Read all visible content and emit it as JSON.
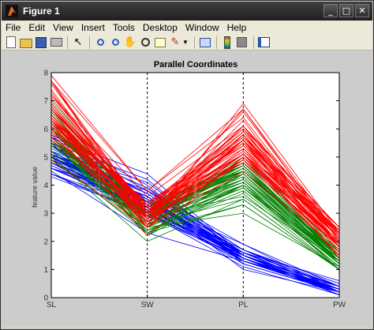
{
  "window": {
    "title": "Figure 1",
    "controls": [
      "_",
      "□",
      "✕"
    ]
  },
  "menu": [
    "File",
    "Edit",
    "View",
    "Insert",
    "Tools",
    "Desktop",
    "Window",
    "Help"
  ],
  "toolbar": {
    "icons": [
      "new-figure-icon",
      "open-file-icon",
      "save-icon",
      "print-icon",
      "edit-plot-arrow-icon",
      "zoom-in-icon",
      "zoom-out-icon",
      "pan-icon",
      "rotate-3d-icon",
      "data-cursor-icon",
      "brush-icon",
      "link-plot-icon",
      "colorbar-icon",
      "legend-icon",
      "plot-tools-icon"
    ]
  },
  "chart_data": {
    "type": "line",
    "title": "Parallel Coordinates",
    "ylabel": "feature value",
    "categories": [
      "SL",
      "SW",
      "PL",
      "PW"
    ],
    "ylim": [
      0,
      8
    ],
    "yticks": [
      0,
      1,
      2,
      3,
      4,
      5,
      6,
      7,
      8
    ],
    "grid": false,
    "vertical_dashed_lines_at": [
      "SW",
      "PL"
    ],
    "series": [
      {
        "color": "#0000ff",
        "lines": [
          [
            5.1,
            3.5,
            1.4,
            0.2
          ],
          [
            4.9,
            3.0,
            1.4,
            0.2
          ],
          [
            4.7,
            3.2,
            1.3,
            0.2
          ],
          [
            4.6,
            3.1,
            1.5,
            0.2
          ],
          [
            5.0,
            3.6,
            1.4,
            0.2
          ],
          [
            5.4,
            3.9,
            1.7,
            0.4
          ],
          [
            4.6,
            3.4,
            1.4,
            0.3
          ],
          [
            5.0,
            3.4,
            1.5,
            0.2
          ],
          [
            4.4,
            2.9,
            1.4,
            0.2
          ],
          [
            4.9,
            3.1,
            1.5,
            0.1
          ],
          [
            5.4,
            3.7,
            1.5,
            0.2
          ],
          [
            4.8,
            3.4,
            1.6,
            0.2
          ],
          [
            4.8,
            3.0,
            1.4,
            0.1
          ],
          [
            4.3,
            3.0,
            1.1,
            0.1
          ],
          [
            5.8,
            4.0,
            1.2,
            0.2
          ],
          [
            5.7,
            4.4,
            1.5,
            0.4
          ],
          [
            5.4,
            3.9,
            1.3,
            0.4
          ],
          [
            5.1,
            3.5,
            1.4,
            0.3
          ],
          [
            5.7,
            3.8,
            1.7,
            0.3
          ],
          [
            5.1,
            3.8,
            1.5,
            0.3
          ],
          [
            5.4,
            3.4,
            1.7,
            0.2
          ],
          [
            5.1,
            3.7,
            1.5,
            0.4
          ],
          [
            4.6,
            3.6,
            1.0,
            0.2
          ],
          [
            5.1,
            3.3,
            1.7,
            0.5
          ],
          [
            4.8,
            3.4,
            1.9,
            0.2
          ],
          [
            5.0,
            3.0,
            1.6,
            0.2
          ],
          [
            5.0,
            3.4,
            1.6,
            0.4
          ],
          [
            5.2,
            3.5,
            1.5,
            0.2
          ],
          [
            5.2,
            3.4,
            1.4,
            0.2
          ],
          [
            4.7,
            3.2,
            1.6,
            0.2
          ],
          [
            4.8,
            3.1,
            1.6,
            0.2
          ],
          [
            5.4,
            3.4,
            1.5,
            0.4
          ],
          [
            5.2,
            4.1,
            1.5,
            0.1
          ],
          [
            5.5,
            4.2,
            1.4,
            0.2
          ],
          [
            4.9,
            3.1,
            1.5,
            0.2
          ],
          [
            5.0,
            3.2,
            1.2,
            0.2
          ],
          [
            5.5,
            3.5,
            1.3,
            0.2
          ],
          [
            4.9,
            3.6,
            1.4,
            0.1
          ],
          [
            4.4,
            3.0,
            1.3,
            0.2
          ],
          [
            5.1,
            3.4,
            1.5,
            0.2
          ],
          [
            5.0,
            3.5,
            1.3,
            0.3
          ],
          [
            4.5,
            2.3,
            1.3,
            0.3
          ],
          [
            4.4,
            3.2,
            1.3,
            0.2
          ],
          [
            5.0,
            3.5,
            1.6,
            0.6
          ],
          [
            5.1,
            3.8,
            1.9,
            0.4
          ],
          [
            4.8,
            3.0,
            1.4,
            0.3
          ],
          [
            5.1,
            3.8,
            1.6,
            0.2
          ],
          [
            4.6,
            3.2,
            1.4,
            0.2
          ],
          [
            5.3,
            3.7,
            1.5,
            0.2
          ],
          [
            5.0,
            3.3,
            1.4,
            0.2
          ]
        ]
      },
      {
        "color": "#008000",
        "lines": [
          [
            7.0,
            3.2,
            4.7,
            1.4
          ],
          [
            6.4,
            3.2,
            4.5,
            1.5
          ],
          [
            6.9,
            3.1,
            4.9,
            1.5
          ],
          [
            5.5,
            2.3,
            4.0,
            1.3
          ],
          [
            6.5,
            2.8,
            4.6,
            1.5
          ],
          [
            5.7,
            2.8,
            4.5,
            1.3
          ],
          [
            6.3,
            3.3,
            4.7,
            1.6
          ],
          [
            4.9,
            2.4,
            3.3,
            1.0
          ],
          [
            6.6,
            2.9,
            4.6,
            1.3
          ],
          [
            5.2,
            2.7,
            3.9,
            1.4
          ],
          [
            5.0,
            2.0,
            3.5,
            1.0
          ],
          [
            5.9,
            3.0,
            4.2,
            1.5
          ],
          [
            6.0,
            2.2,
            4.0,
            1.0
          ],
          [
            6.1,
            2.9,
            4.7,
            1.4
          ],
          [
            5.6,
            2.9,
            3.6,
            1.3
          ],
          [
            6.7,
            3.1,
            4.4,
            1.4
          ],
          [
            5.6,
            3.0,
            4.5,
            1.5
          ],
          [
            5.8,
            2.7,
            4.1,
            1.0
          ],
          [
            6.2,
            2.2,
            4.5,
            1.5
          ],
          [
            5.6,
            2.5,
            3.9,
            1.1
          ],
          [
            5.9,
            3.2,
            4.8,
            1.8
          ],
          [
            6.1,
            2.8,
            4.0,
            1.3
          ],
          [
            6.3,
            2.5,
            4.9,
            1.5
          ],
          [
            6.1,
            2.8,
            4.7,
            1.2
          ],
          [
            6.4,
            2.9,
            4.3,
            1.3
          ],
          [
            6.6,
            3.0,
            4.4,
            1.4
          ],
          [
            6.8,
            2.8,
            4.8,
            1.4
          ],
          [
            6.7,
            3.0,
            5.0,
            1.7
          ],
          [
            6.0,
            2.9,
            4.5,
            1.5
          ],
          [
            5.7,
            2.6,
            3.5,
            1.0
          ],
          [
            5.5,
            2.4,
            3.8,
            1.1
          ],
          [
            5.5,
            2.4,
            3.7,
            1.0
          ],
          [
            5.8,
            2.7,
            3.9,
            1.2
          ],
          [
            6.0,
            2.7,
            5.1,
            1.6
          ],
          [
            5.4,
            3.0,
            4.5,
            1.5
          ],
          [
            6.0,
            3.4,
            4.5,
            1.6
          ],
          [
            6.7,
            3.1,
            4.7,
            1.5
          ],
          [
            6.3,
            2.3,
            4.4,
            1.3
          ],
          [
            5.6,
            3.0,
            4.1,
            1.3
          ],
          [
            5.5,
            2.5,
            4.0,
            1.3
          ],
          [
            5.5,
            2.6,
            4.4,
            1.2
          ],
          [
            6.1,
            3.0,
            4.6,
            1.4
          ],
          [
            5.8,
            2.6,
            4.0,
            1.2
          ],
          [
            5.0,
            2.3,
            3.3,
            1.0
          ],
          [
            5.6,
            2.7,
            4.2,
            1.3
          ],
          [
            5.7,
            3.0,
            4.2,
            1.2
          ],
          [
            5.7,
            2.9,
            4.2,
            1.3
          ],
          [
            6.2,
            2.9,
            4.3,
            1.3
          ],
          [
            5.1,
            2.5,
            3.0,
            1.1
          ],
          [
            5.7,
            2.8,
            4.1,
            1.3
          ]
        ]
      },
      {
        "color": "#ff0000",
        "lines": [
          [
            6.3,
            3.3,
            6.0,
            2.5
          ],
          [
            5.8,
            2.7,
            5.1,
            1.9
          ],
          [
            7.1,
            3.0,
            5.9,
            2.1
          ],
          [
            6.3,
            2.9,
            5.6,
            1.8
          ],
          [
            6.5,
            3.0,
            5.8,
            2.2
          ],
          [
            7.6,
            3.0,
            6.6,
            2.1
          ],
          [
            4.9,
            2.5,
            4.5,
            1.7
          ],
          [
            7.3,
            2.9,
            6.3,
            1.8
          ],
          [
            6.7,
            2.5,
            5.8,
            1.8
          ],
          [
            7.2,
            3.6,
            6.1,
            2.5
          ],
          [
            6.5,
            3.2,
            5.1,
            2.0
          ],
          [
            6.4,
            2.7,
            5.3,
            1.9
          ],
          [
            6.8,
            3.0,
            5.5,
            2.1
          ],
          [
            5.7,
            2.5,
            5.0,
            2.0
          ],
          [
            5.8,
            2.8,
            5.1,
            2.4
          ],
          [
            6.4,
            3.2,
            5.3,
            2.3
          ],
          [
            6.5,
            3.0,
            5.5,
            1.8
          ],
          [
            7.7,
            3.8,
            6.7,
            2.2
          ],
          [
            7.7,
            2.6,
            6.9,
            2.3
          ],
          [
            6.0,
            2.2,
            5.0,
            1.5
          ],
          [
            6.9,
            3.2,
            5.7,
            2.3
          ],
          [
            5.6,
            2.8,
            4.9,
            2.0
          ],
          [
            7.7,
            2.8,
            6.7,
            2.0
          ],
          [
            6.3,
            2.7,
            4.9,
            1.8
          ],
          [
            6.7,
            3.3,
            5.7,
            2.1
          ],
          [
            7.2,
            3.2,
            6.0,
            1.8
          ],
          [
            6.2,
            2.8,
            4.8,
            1.8
          ],
          [
            6.1,
            3.0,
            4.9,
            1.8
          ],
          [
            6.4,
            2.8,
            5.6,
            2.1
          ],
          [
            7.2,
            3.0,
            5.8,
            1.6
          ],
          [
            7.4,
            2.8,
            6.1,
            1.9
          ],
          [
            7.9,
            3.8,
            6.4,
            2.0
          ],
          [
            6.4,
            2.8,
            5.6,
            2.2
          ],
          [
            6.3,
            2.8,
            5.1,
            1.5
          ],
          [
            6.1,
            2.6,
            5.6,
            1.4
          ],
          [
            7.7,
            3.0,
            6.1,
            2.3
          ],
          [
            6.3,
            3.4,
            5.6,
            2.4
          ],
          [
            6.4,
            3.1,
            5.5,
            1.8
          ],
          [
            6.0,
            3.0,
            4.8,
            1.8
          ],
          [
            6.9,
            3.1,
            5.4,
            2.1
          ],
          [
            6.7,
            3.1,
            5.6,
            2.4
          ],
          [
            6.9,
            3.1,
            5.1,
            2.3
          ],
          [
            5.8,
            2.7,
            5.1,
            1.9
          ],
          [
            6.8,
            3.2,
            5.9,
            2.3
          ],
          [
            6.7,
            3.3,
            5.7,
            2.5
          ],
          [
            6.7,
            3.0,
            5.2,
            2.3
          ],
          [
            6.3,
            2.5,
            5.0,
            1.9
          ],
          [
            6.5,
            3.0,
            5.2,
            2.0
          ],
          [
            6.2,
            3.4,
            5.4,
            2.3
          ],
          [
            5.9,
            3.0,
            5.1,
            1.8
          ]
        ]
      }
    ]
  }
}
